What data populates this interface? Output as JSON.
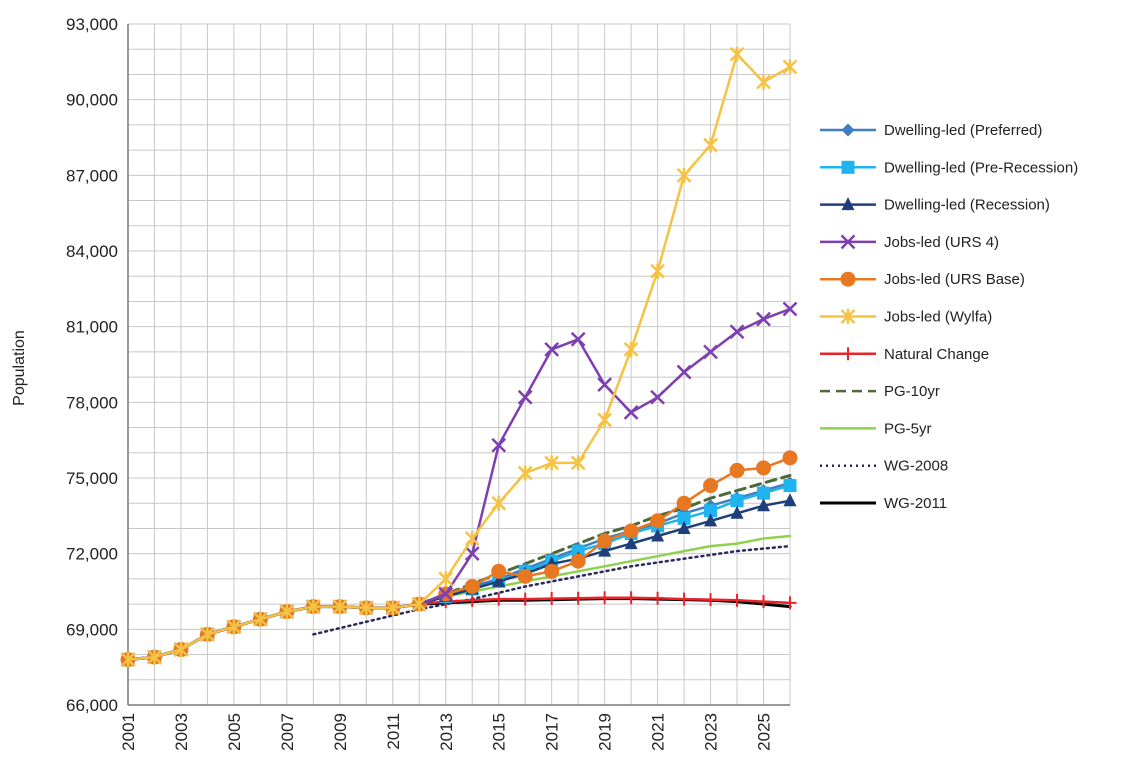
{
  "chart_data": {
    "type": "line",
    "title": "",
    "xlabel": "",
    "ylabel": "Population",
    "xlim": [
      2001,
      2026
    ],
    "ylim": [
      66000,
      93000
    ],
    "x_ticks": [
      "2001",
      "2003",
      "2005",
      "2007",
      "2009",
      "2011",
      "2013",
      "2015",
      "2017",
      "2019",
      "2021",
      "2023",
      "2025"
    ],
    "y_ticks": [
      "66,000",
      "69,000",
      "72,000",
      "75,000",
      "78,000",
      "81,000",
      "84,000",
      "87,000",
      "90,000",
      "93,000"
    ],
    "grid": true,
    "legend_position": "right",
    "series": [
      {
        "name": "Dwelling-led (Preferred)",
        "color": "#3f7fc0",
        "marker": "diamond",
        "dash": "solid",
        "x": [
          2001,
          2002,
          2003,
          2004,
          2005,
          2006,
          2007,
          2008,
          2009,
          2010,
          2011,
          2012,
          2013,
          2014,
          2015,
          2016,
          2017,
          2018,
          2019,
          2020,
          2021,
          2022,
          2023,
          2024,
          2025,
          2026
        ],
        "y": [
          67800,
          67900,
          68200,
          68800,
          69100,
          69400,
          69700,
          69900,
          69900,
          69850,
          69850,
          70000,
          70300,
          70700,
          71000,
          71400,
          71800,
          72200,
          72600,
          72900,
          73200,
          73600,
          73900,
          74200,
          74500,
          74800
        ]
      },
      {
        "name": "Dwelling-led (Pre-Recession)",
        "color": "#1fb4ef",
        "marker": "square",
        "dash": "solid",
        "x": [
          2001,
          2002,
          2003,
          2004,
          2005,
          2006,
          2007,
          2008,
          2009,
          2010,
          2011,
          2012,
          2013,
          2014,
          2015,
          2016,
          2017,
          2018,
          2019,
          2020,
          2021,
          2022,
          2023,
          2024,
          2025,
          2026
        ],
        "y": [
          67800,
          67900,
          68200,
          68800,
          69100,
          69400,
          69700,
          69900,
          69900,
          69850,
          69850,
          70000,
          70300,
          70600,
          70900,
          71300,
          71700,
          72100,
          72400,
          72800,
          73100,
          73400,
          73700,
          74100,
          74400,
          74700
        ]
      },
      {
        "name": "Dwelling-led (Recession)",
        "color": "#1f3f7a",
        "marker": "triangle",
        "dash": "solid",
        "x": [
          2001,
          2002,
          2003,
          2004,
          2005,
          2006,
          2007,
          2008,
          2009,
          2010,
          2011,
          2012,
          2013,
          2014,
          2015,
          2016,
          2017,
          2018,
          2019,
          2020,
          2021,
          2022,
          2023,
          2024,
          2025,
          2026
        ],
        "y": [
          67800,
          67900,
          68200,
          68800,
          69100,
          69400,
          69700,
          69900,
          69900,
          69850,
          69850,
          70000,
          70300,
          70600,
          70900,
          71200,
          71600,
          71800,
          72100,
          72400,
          72700,
          73000,
          73300,
          73600,
          73900,
          74100
        ]
      },
      {
        "name": "Jobs-led (URS 4)",
        "color": "#7e3fb0",
        "marker": "x",
        "dash": "solid",
        "x": [
          2001,
          2002,
          2003,
          2004,
          2005,
          2006,
          2007,
          2008,
          2009,
          2010,
          2011,
          2012,
          2013,
          2014,
          2015,
          2016,
          2017,
          2018,
          2019,
          2020,
          2021,
          2022,
          2023,
          2024,
          2025,
          2026
        ],
        "y": [
          67800,
          67900,
          68200,
          68800,
          69100,
          69400,
          69700,
          69900,
          69900,
          69850,
          69850,
          70000,
          70400,
          72000,
          76300,
          78200,
          80100,
          80500,
          78700,
          77600,
          78200,
          79200,
          80000,
          80800,
          81300,
          81700
        ]
      },
      {
        "name": "Jobs-led (URS Base)",
        "color": "#e87722",
        "marker": "circle",
        "dash": "solid",
        "x": [
          2001,
          2002,
          2003,
          2004,
          2005,
          2006,
          2007,
          2008,
          2009,
          2010,
          2011,
          2012,
          2013,
          2014,
          2015,
          2016,
          2017,
          2018,
          2019,
          2020,
          2021,
          2022,
          2023,
          2024,
          2025,
          2026
        ],
        "y": [
          67800,
          67900,
          68200,
          68800,
          69100,
          69400,
          69700,
          69900,
          69900,
          69850,
          69850,
          70000,
          70400,
          70700,
          71300,
          71100,
          71300,
          71700,
          72500,
          72900,
          73300,
          74000,
          74700,
          75300,
          75400,
          75800
        ]
      },
      {
        "name": "Jobs-led (Wylfa)",
        "color": "#f5c242",
        "marker": "star",
        "dash": "solid",
        "x": [
          2001,
          2002,
          2003,
          2004,
          2005,
          2006,
          2007,
          2008,
          2009,
          2010,
          2011,
          2012,
          2013,
          2014,
          2015,
          2016,
          2017,
          2018,
          2019,
          2020,
          2021,
          2022,
          2023,
          2024,
          2025,
          2026
        ],
        "y": [
          67800,
          67900,
          68200,
          68800,
          69100,
          69400,
          69700,
          69900,
          69900,
          69850,
          69850,
          70000,
          71000,
          72600,
          74000,
          75200,
          75600,
          75600,
          77300,
          80100,
          83200,
          87000,
          88200,
          91800,
          90700,
          91300
        ]
      },
      {
        "name": "Natural Change",
        "color": "#e8242a",
        "marker": "plus",
        "dash": "solid",
        "x": [
          2012,
          2013,
          2014,
          2015,
          2016,
          2017,
          2018,
          2019,
          2020,
          2021,
          2022,
          2023,
          2024,
          2025,
          2026
        ],
        "y": [
          70000,
          70100,
          70150,
          70200,
          70200,
          70220,
          70230,
          70250,
          70250,
          70230,
          70200,
          70180,
          70150,
          70100,
          70050
        ]
      },
      {
        "name": "PG-10yr",
        "color": "#4d6b3a",
        "marker": "none",
        "dash": "dashed",
        "x": [
          2012,
          2013,
          2014,
          2015,
          2016,
          2017,
          2018,
          2019,
          2020,
          2021,
          2022,
          2023,
          2024,
          2025,
          2026
        ],
        "y": [
          70000,
          70400,
          70800,
          71200,
          71600,
          72000,
          72400,
          72800,
          73100,
          73500,
          73800,
          74200,
          74500,
          74800,
          75100
        ]
      },
      {
        "name": "PG-5yr",
        "color": "#8fd14f",
        "marker": "none",
        "dash": "solid",
        "x": [
          2012,
          2013,
          2014,
          2015,
          2016,
          2017,
          2018,
          2019,
          2020,
          2021,
          2022,
          2023,
          2024,
          2025,
          2026
        ],
        "y": [
          70000,
          70300,
          70500,
          70700,
          70900,
          71100,
          71300,
          71500,
          71700,
          71900,
          72100,
          72300,
          72400,
          72600,
          72700
        ]
      },
      {
        "name": "WG-2008",
        "color": "#2b2b5a",
        "marker": "none",
        "dash": "dotted",
        "x": [
          2008,
          2010,
          2012,
          2014,
          2016,
          2018,
          2020,
          2022,
          2024,
          2026
        ],
        "y": [
          68800,
          69300,
          69800,
          70200,
          70700,
          71100,
          71500,
          71800,
          72100,
          72300
        ]
      },
      {
        "name": "WG-2011",
        "color": "#000000",
        "marker": "none",
        "dash": "solid",
        "x": [
          2001,
          2002,
          2003,
          2004,
          2005,
          2006,
          2007,
          2008,
          2009,
          2010,
          2011,
          2012,
          2013,
          2014,
          2015,
          2016,
          2017,
          2018,
          2019,
          2020,
          2021,
          2022,
          2023,
          2024,
          2025,
          2026
        ],
        "y": [
          67800,
          67900,
          68200,
          68800,
          69100,
          69400,
          69700,
          69900,
          69900,
          69850,
          69850,
          70000,
          70050,
          70100,
          70150,
          70150,
          70170,
          70200,
          70220,
          70220,
          70200,
          70180,
          70150,
          70100,
          70000,
          69900
        ]
      }
    ]
  }
}
